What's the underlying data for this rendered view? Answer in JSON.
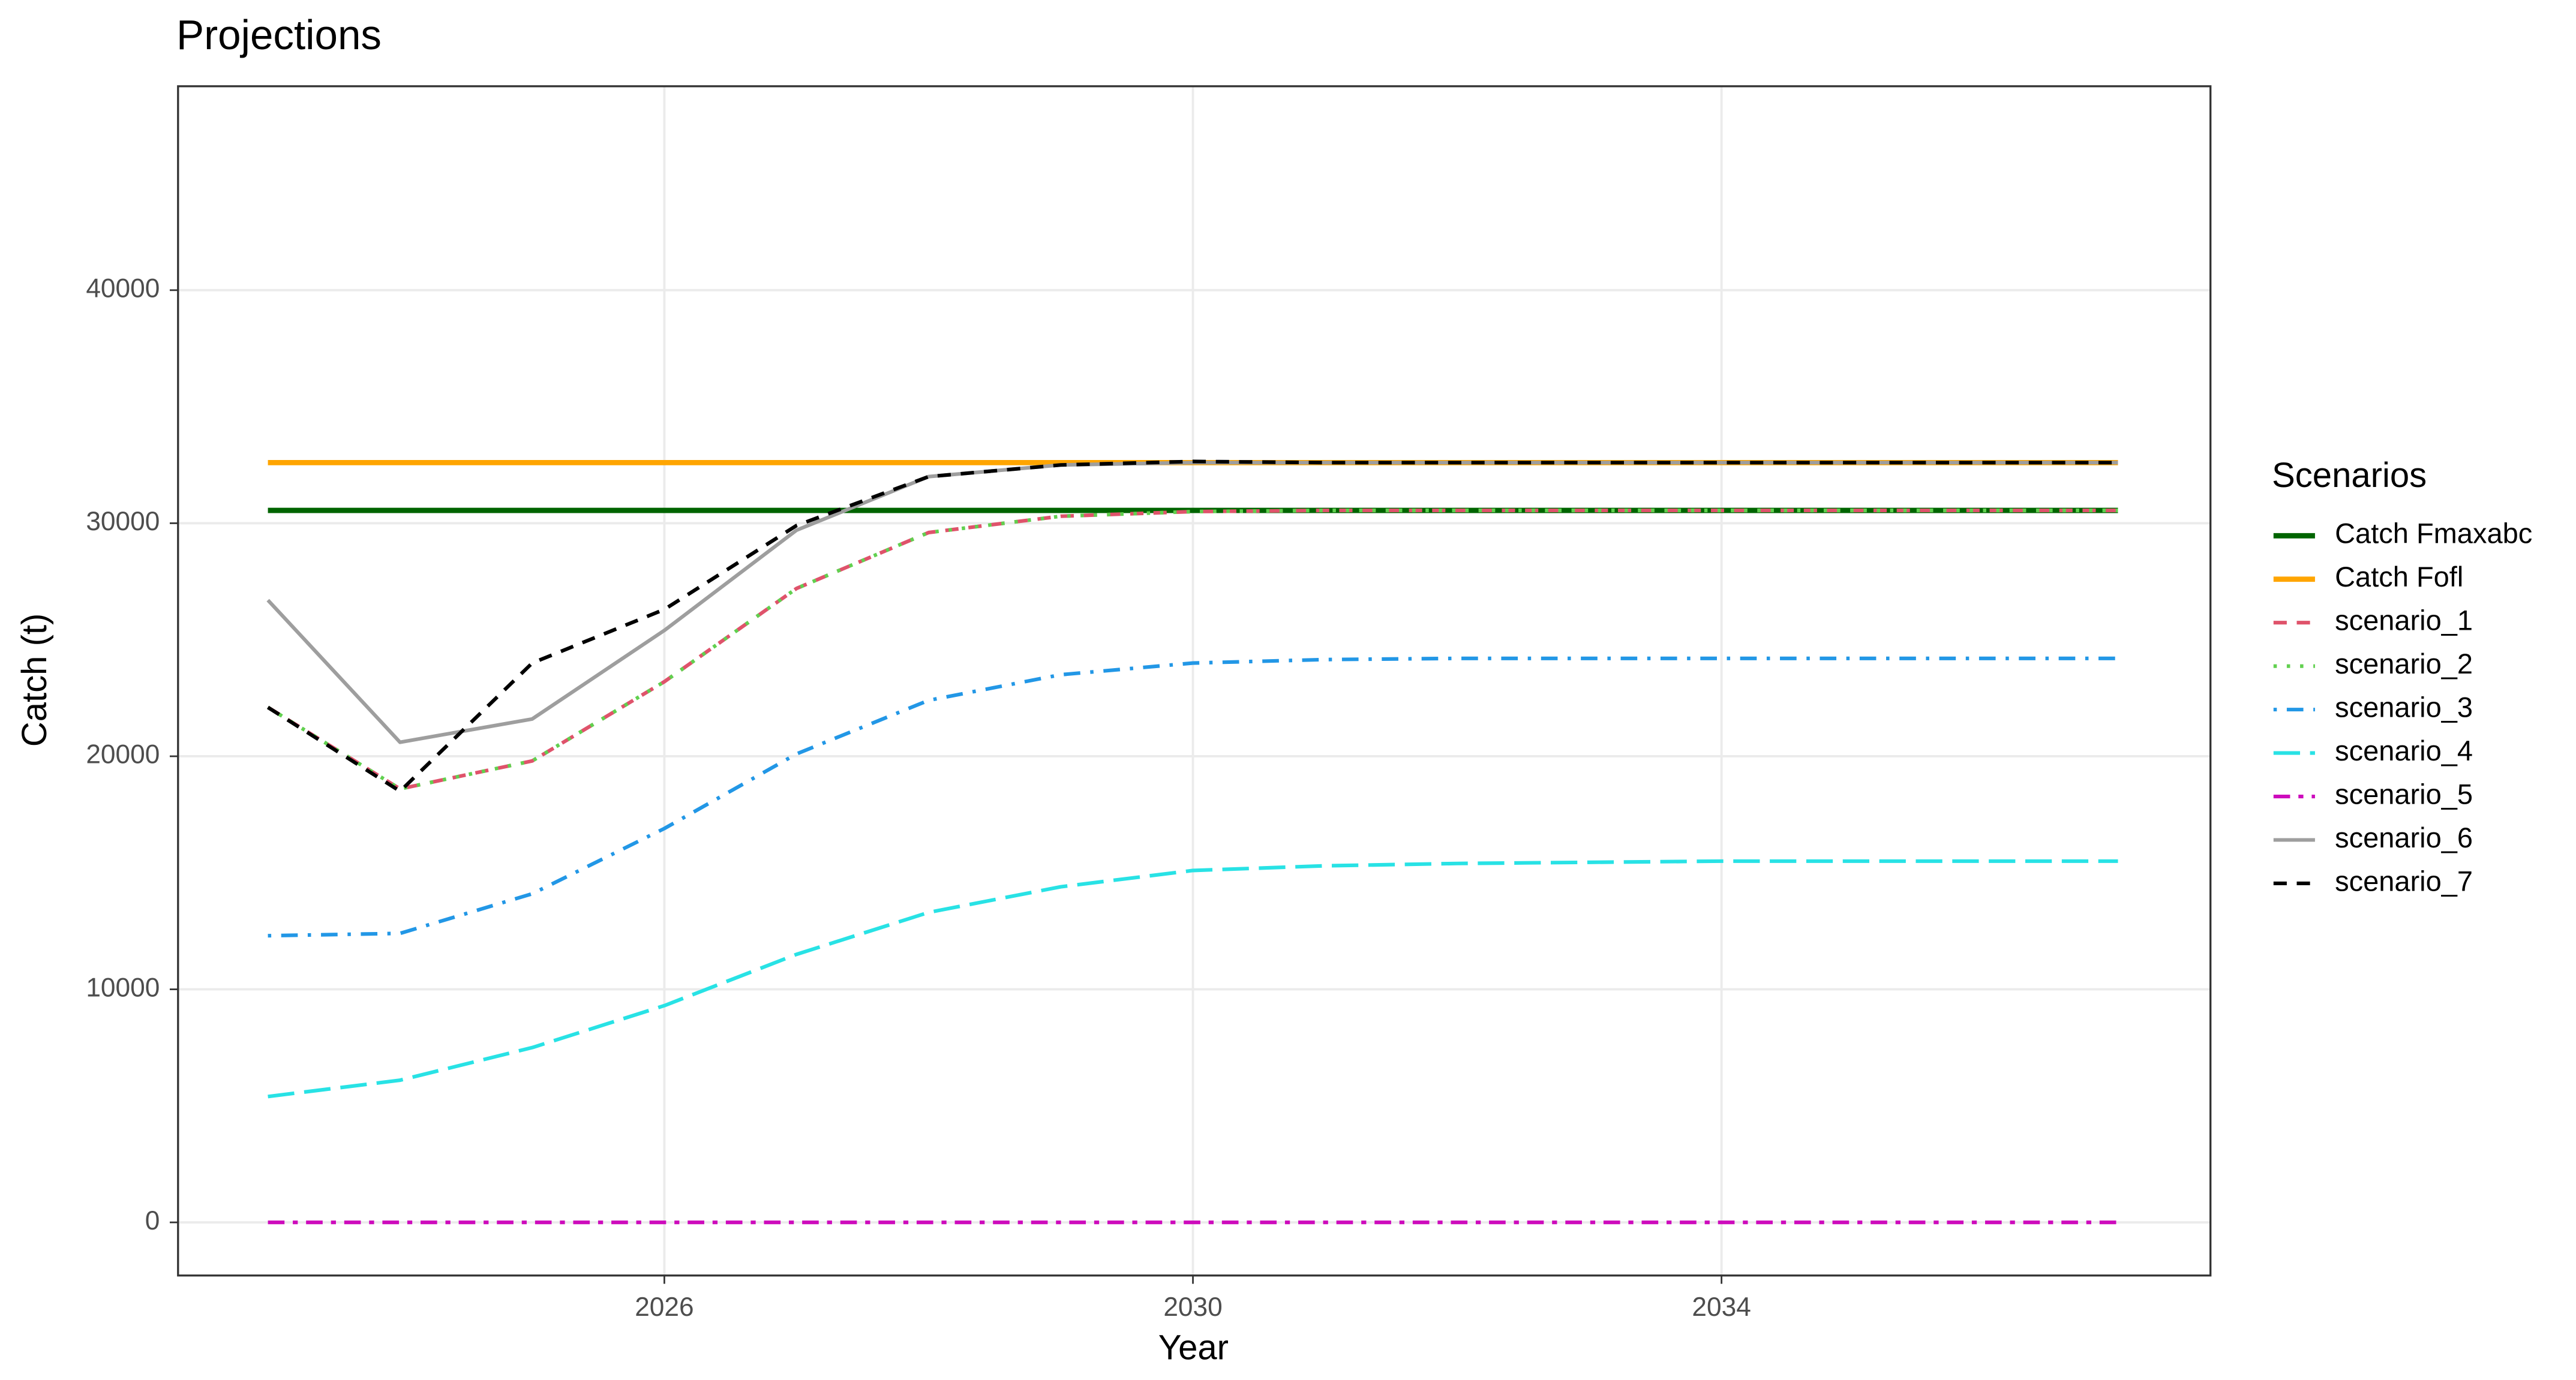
{
  "chart_data": {
    "type": "line",
    "title": "Projections",
    "x_label": "Year",
    "y_label": "Catch (t)",
    "legend_title": "Scenarios",
    "legend": "right",
    "grid": true,
    "x": [
      2023,
      2024,
      2025,
      2026,
      2027,
      2028,
      2029,
      2030,
      2031,
      2032,
      2033,
      2034,
      2035,
      2036,
      2037
    ],
    "xlim": [
      2022.32,
      2037.7
    ],
    "xticks": [
      2026,
      2030,
      2034
    ],
    "ylim": [
      -2280,
      48750
    ],
    "yticks": [
      0,
      10000,
      20000,
      30000,
      40000
    ],
    "series": [
      {
        "name": "Catch Fmaxabc",
        "color": "#006400",
        "linetype": "solid",
        "linewidth": 3.2,
        "values": [
          30550,
          30550,
          30550,
          30550,
          30550,
          30550,
          30550,
          30550,
          30550,
          30550,
          30550,
          30550,
          30550,
          30550,
          30550
        ]
      },
      {
        "name": "Catch Fofl",
        "color": "#FFA500",
        "linetype": "solid",
        "linewidth": 3.2,
        "values": [
          32600,
          32600,
          32600,
          32600,
          32600,
          32600,
          32600,
          32600,
          32600,
          32600,
          32600,
          32600,
          32600,
          32600,
          32600
        ]
      },
      {
        "name": "scenario_1",
        "color": "#DF536B",
        "linetype": "dashed",
        "linewidth": 2.2,
        "values": [
          22100,
          18600,
          19800,
          23200,
          27200,
          29600,
          30300,
          30500,
          30550,
          30550,
          30550,
          30550,
          30550,
          30550,
          30550
        ]
      },
      {
        "name": "scenario_2",
        "color": "#61D04F",
        "linetype": "dotted",
        "linewidth": 2.2,
        "values": [
          22100,
          18600,
          19800,
          23200,
          27200,
          29600,
          30300,
          30500,
          30550,
          30550,
          30550,
          30550,
          30550,
          30550,
          30550
        ]
      },
      {
        "name": "scenario_3",
        "color": "#2297E6",
        "linetype": "dotdash",
        "linewidth": 2.2,
        "values": [
          12300,
          12400,
          14100,
          16900,
          20100,
          22400,
          23500,
          24000,
          24150,
          24200,
          24200,
          24200,
          24200,
          24200,
          24200
        ]
      },
      {
        "name": "scenario_4",
        "color": "#28E2E5",
        "linetype": "longdash",
        "linewidth": 2.2,
        "values": [
          5400,
          6100,
          7500,
          9300,
          11500,
          13300,
          14400,
          15100,
          15300,
          15400,
          15450,
          15500,
          15500,
          15500,
          15500
        ]
      },
      {
        "name": "scenario_5",
        "color": "#CD0BBC",
        "linetype": "twodash",
        "linewidth": 2.2,
        "values": [
          0,
          0,
          0,
          0,
          0,
          0,
          0,
          0,
          0,
          0,
          0,
          0,
          0,
          0,
          0
        ]
      },
      {
        "name": "scenario_6",
        "color": "#9E9E9E",
        "linetype": "solid",
        "linewidth": 2.2,
        "values": [
          26700,
          20600,
          21600,
          25400,
          29700,
          32000,
          32500,
          32600,
          32600,
          32600,
          32600,
          32600,
          32600,
          32600,
          32600
        ]
      },
      {
        "name": "scenario_7",
        "color": "#000000",
        "linetype": "dashed",
        "linewidth": 2.2,
        "values": [
          22100,
          18500,
          24000,
          26300,
          29900,
          32000,
          32500,
          32650,
          32600,
          32600,
          32600,
          32600,
          32600,
          32600,
          32600
        ]
      }
    ]
  }
}
